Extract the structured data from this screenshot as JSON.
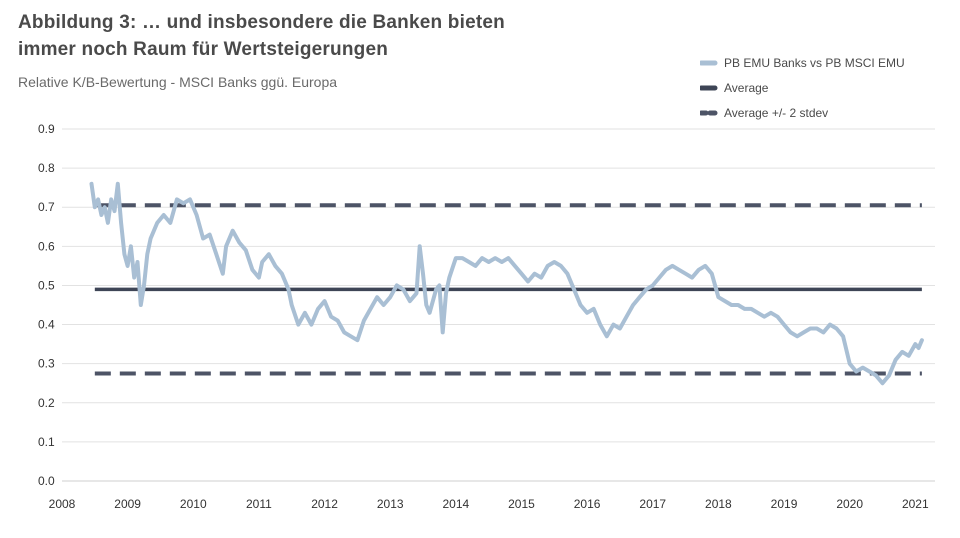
{
  "header": {
    "title_line1": "Abbildung 3: … und insbesondere die Banken bieten",
    "title_line2": "immer noch Raum für Wertsteigerungen",
    "subtitle": "Relative K/B-Bewertung - MSCI Banks ggü. Europa"
  },
  "legend": {
    "items": [
      {
        "label": "PB EMU Banks vs PB MSCI EMU",
        "style": "line",
        "color": "#a9bfd4"
      },
      {
        "label": "Average",
        "style": "solid",
        "color": "#3e4556"
      },
      {
        "label": "Average +/- 2 stdev",
        "style": "dashed",
        "color": "#4d5466"
      }
    ]
  },
  "chart_data": {
    "type": "line",
    "title": "Relative K/B-Bewertung - MSCI Banks ggü. Europa",
    "xlabel": "",
    "ylabel": "",
    "xlim": [
      2008,
      2021.3
    ],
    "ylim": [
      0,
      0.9
    ],
    "x_ticks": [
      "2008",
      "2009",
      "2010",
      "2011",
      "2012",
      "2013",
      "2014",
      "2015",
      "2016",
      "2017",
      "2018",
      "2019",
      "2020",
      "2021"
    ],
    "y_ticks": [
      "0.0",
      "0.1",
      "0.2",
      "0.3",
      "0.4",
      "0.5",
      "0.6",
      "0.7",
      "0.8",
      "0.9"
    ],
    "reference_lines": {
      "average": 0.49,
      "upper_2stdev": 0.705,
      "lower_2stdev": 0.275,
      "x_start": 2008.5,
      "x_end": 2021.1
    },
    "series": [
      {
        "name": "PB EMU Banks vs PB MSCI EMU",
        "color": "#a9bfd4",
        "points": [
          [
            2008.45,
            0.76
          ],
          [
            2008.5,
            0.7
          ],
          [
            2008.55,
            0.72
          ],
          [
            2008.6,
            0.68
          ],
          [
            2008.65,
            0.7
          ],
          [
            2008.7,
            0.66
          ],
          [
            2008.75,
            0.72
          ],
          [
            2008.8,
            0.69
          ],
          [
            2008.85,
            0.76
          ],
          [
            2008.9,
            0.66
          ],
          [
            2008.95,
            0.58
          ],
          [
            2009.0,
            0.55
          ],
          [
            2009.05,
            0.6
          ],
          [
            2009.1,
            0.52
          ],
          [
            2009.15,
            0.56
          ],
          [
            2009.2,
            0.45
          ],
          [
            2009.25,
            0.5
          ],
          [
            2009.3,
            0.58
          ],
          [
            2009.35,
            0.62
          ],
          [
            2009.45,
            0.66
          ],
          [
            2009.55,
            0.68
          ],
          [
            2009.65,
            0.66
          ],
          [
            2009.75,
            0.72
          ],
          [
            2009.85,
            0.71
          ],
          [
            2009.95,
            0.72
          ],
          [
            2010.05,
            0.68
          ],
          [
            2010.15,
            0.62
          ],
          [
            2010.25,
            0.63
          ],
          [
            2010.35,
            0.58
          ],
          [
            2010.45,
            0.53
          ],
          [
            2010.5,
            0.6
          ],
          [
            2010.6,
            0.64
          ],
          [
            2010.7,
            0.61
          ],
          [
            2010.8,
            0.59
          ],
          [
            2010.9,
            0.54
          ],
          [
            2011.0,
            0.52
          ],
          [
            2011.05,
            0.56
          ],
          [
            2011.15,
            0.58
          ],
          [
            2011.25,
            0.55
          ],
          [
            2011.35,
            0.53
          ],
          [
            2011.45,
            0.49
          ],
          [
            2011.5,
            0.45
          ],
          [
            2011.6,
            0.4
          ],
          [
            2011.7,
            0.43
          ],
          [
            2011.8,
            0.4
          ],
          [
            2011.9,
            0.44
          ],
          [
            2012.0,
            0.46
          ],
          [
            2012.1,
            0.42
          ],
          [
            2012.2,
            0.41
          ],
          [
            2012.3,
            0.38
          ],
          [
            2012.4,
            0.37
          ],
          [
            2012.5,
            0.36
          ],
          [
            2012.6,
            0.41
          ],
          [
            2012.7,
            0.44
          ],
          [
            2012.8,
            0.47
          ],
          [
            2012.9,
            0.45
          ],
          [
            2013.0,
            0.47
          ],
          [
            2013.1,
            0.5
          ],
          [
            2013.2,
            0.49
          ],
          [
            2013.3,
            0.46
          ],
          [
            2013.4,
            0.48
          ],
          [
            2013.45,
            0.6
          ],
          [
            2013.5,
            0.53
          ],
          [
            2013.55,
            0.45
          ],
          [
            2013.6,
            0.43
          ],
          [
            2013.7,
            0.49
          ],
          [
            2013.75,
            0.5
          ],
          [
            2013.8,
            0.38
          ],
          [
            2013.85,
            0.48
          ],
          [
            2013.9,
            0.52
          ],
          [
            2014.0,
            0.57
          ],
          [
            2014.1,
            0.57
          ],
          [
            2014.2,
            0.56
          ],
          [
            2014.3,
            0.55
          ],
          [
            2014.4,
            0.57
          ],
          [
            2014.5,
            0.56
          ],
          [
            2014.6,
            0.57
          ],
          [
            2014.7,
            0.56
          ],
          [
            2014.8,
            0.57
          ],
          [
            2014.9,
            0.55
          ],
          [
            2015.0,
            0.53
          ],
          [
            2015.1,
            0.51
          ],
          [
            2015.2,
            0.53
          ],
          [
            2015.3,
            0.52
          ],
          [
            2015.4,
            0.55
          ],
          [
            2015.5,
            0.56
          ],
          [
            2015.6,
            0.55
          ],
          [
            2015.7,
            0.53
          ],
          [
            2015.8,
            0.49
          ],
          [
            2015.9,
            0.45
          ],
          [
            2016.0,
            0.43
          ],
          [
            2016.1,
            0.44
          ],
          [
            2016.2,
            0.4
          ],
          [
            2016.3,
            0.37
          ],
          [
            2016.4,
            0.4
          ],
          [
            2016.5,
            0.39
          ],
          [
            2016.6,
            0.42
          ],
          [
            2016.7,
            0.45
          ],
          [
            2016.8,
            0.47
          ],
          [
            2016.9,
            0.49
          ],
          [
            2017.0,
            0.5
          ],
          [
            2017.1,
            0.52
          ],
          [
            2017.2,
            0.54
          ],
          [
            2017.3,
            0.55
          ],
          [
            2017.4,
            0.54
          ],
          [
            2017.5,
            0.53
          ],
          [
            2017.6,
            0.52
          ],
          [
            2017.7,
            0.54
          ],
          [
            2017.8,
            0.55
          ],
          [
            2017.9,
            0.53
          ],
          [
            2018.0,
            0.47
          ],
          [
            2018.1,
            0.46
          ],
          [
            2018.2,
            0.45
          ],
          [
            2018.3,
            0.45
          ],
          [
            2018.4,
            0.44
          ],
          [
            2018.5,
            0.44
          ],
          [
            2018.6,
            0.43
          ],
          [
            2018.7,
            0.42
          ],
          [
            2018.8,
            0.43
          ],
          [
            2018.9,
            0.42
          ],
          [
            2019.0,
            0.4
          ],
          [
            2019.1,
            0.38
          ],
          [
            2019.2,
            0.37
          ],
          [
            2019.3,
            0.38
          ],
          [
            2019.4,
            0.39
          ],
          [
            2019.5,
            0.39
          ],
          [
            2019.6,
            0.38
          ],
          [
            2019.7,
            0.4
          ],
          [
            2019.8,
            0.39
          ],
          [
            2019.9,
            0.37
          ],
          [
            2020.0,
            0.3
          ],
          [
            2020.1,
            0.28
          ],
          [
            2020.2,
            0.29
          ],
          [
            2020.3,
            0.28
          ],
          [
            2020.4,
            0.27
          ],
          [
            2020.5,
            0.25
          ],
          [
            2020.6,
            0.27
          ],
          [
            2020.7,
            0.31
          ],
          [
            2020.8,
            0.33
          ],
          [
            2020.9,
            0.32
          ],
          [
            2021.0,
            0.35
          ],
          [
            2021.05,
            0.34
          ],
          [
            2021.1,
            0.36
          ]
        ]
      }
    ]
  }
}
